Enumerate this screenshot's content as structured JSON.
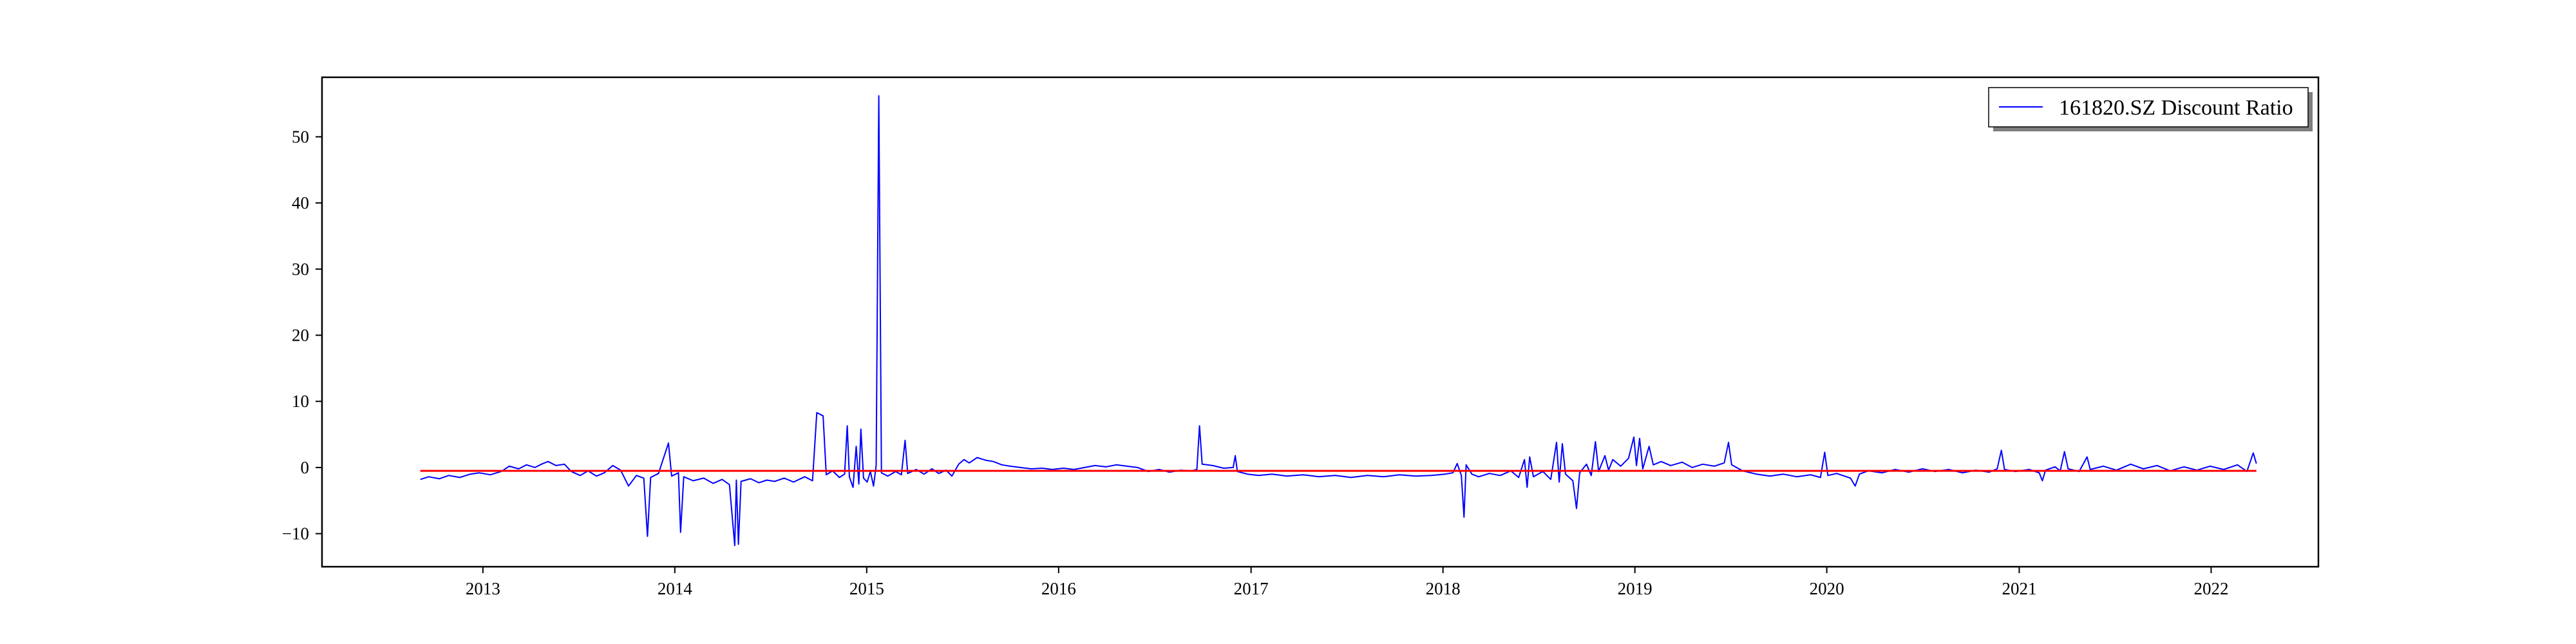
{
  "chart_data": {
    "type": "line",
    "title": "",
    "xlabel": "",
    "ylabel": "",
    "x_range": [
      "2012-03-01",
      "2022-07-24"
    ],
    "ylim": [
      -15,
      59
    ],
    "x_ticks": [
      "2013",
      "2014",
      "2015",
      "2016",
      "2017",
      "2018",
      "2019",
      "2020",
      "2021",
      "2022"
    ],
    "y_ticks": [
      -10,
      0,
      10,
      20,
      30,
      40,
      50
    ],
    "y_tick_labels": [
      "−10",
      "0",
      "10",
      "20",
      "30",
      "40",
      "50"
    ],
    "grid": false,
    "legend": {
      "position": "top-right",
      "entries": [
        "161820.SZ Discount Ratio"
      ]
    },
    "series": [
      {
        "name": "161820.SZ Discount Ratio",
        "color": "#0000ff",
        "points": [
          [
            "2012-09-04",
            -1.8
          ],
          [
            "2012-09-20",
            -1.4
          ],
          [
            "2012-10-10",
            -1.7
          ],
          [
            "2012-10-28",
            -1.2
          ],
          [
            "2012-11-18",
            -1.5
          ],
          [
            "2012-12-08",
            -1.0
          ],
          [
            "2012-12-25",
            -0.8
          ],
          [
            "2013-01-15",
            -1.1
          ],
          [
            "2013-02-05",
            -0.6
          ],
          [
            "2013-02-20",
            0.2
          ],
          [
            "2013-03-10",
            -0.2
          ],
          [
            "2013-03-25",
            0.4
          ],
          [
            "2013-04-10",
            0.0
          ],
          [
            "2013-04-25",
            0.6
          ],
          [
            "2013-05-05",
            0.9
          ],
          [
            "2013-05-20",
            0.3
          ],
          [
            "2013-06-05",
            0.5
          ],
          [
            "2013-06-18",
            -0.6
          ],
          [
            "2013-07-05",
            -1.2
          ],
          [
            "2013-07-20",
            -0.5
          ],
          [
            "2013-08-05",
            -1.3
          ],
          [
            "2013-08-20",
            -0.8
          ],
          [
            "2013-09-05",
            0.3
          ],
          [
            "2013-09-20",
            -0.4
          ],
          [
            "2013-10-05",
            -2.8
          ],
          [
            "2013-10-20",
            -1.2
          ],
          [
            "2013-11-03",
            -1.6
          ],
          [
            "2013-11-10",
            -10.4
          ],
          [
            "2013-11-16",
            -1.5
          ],
          [
            "2013-12-01",
            -0.9
          ],
          [
            "2013-12-20",
            3.7
          ],
          [
            "2013-12-26",
            -1.3
          ],
          [
            "2014-01-08",
            -0.8
          ],
          [
            "2014-01-12",
            -9.8
          ],
          [
            "2014-01-18",
            -1.4
          ],
          [
            "2014-02-05",
            -2.0
          ],
          [
            "2014-02-25",
            -1.6
          ],
          [
            "2014-03-15",
            -2.4
          ],
          [
            "2014-04-01",
            -1.8
          ],
          [
            "2014-04-15",
            -2.6
          ],
          [
            "2014-04-25",
            -11.8
          ],
          [
            "2014-04-28",
            -1.9
          ],
          [
            "2014-05-02",
            -11.6
          ],
          [
            "2014-05-07",
            -2.1
          ],
          [
            "2014-05-25",
            -1.7
          ],
          [
            "2014-06-10",
            -2.3
          ],
          [
            "2014-06-25",
            -1.9
          ],
          [
            "2014-07-10",
            -2.1
          ],
          [
            "2014-07-28",
            -1.6
          ],
          [
            "2014-08-15",
            -2.2
          ],
          [
            "2014-09-05",
            -1.4
          ],
          [
            "2014-09-20",
            -2.0
          ],
          [
            "2014-09-28",
            8.3
          ],
          [
            "2014-10-03",
            8.1
          ],
          [
            "2014-10-10",
            7.8
          ],
          [
            "2014-10-16",
            -1.1
          ],
          [
            "2014-10-28",
            -0.5
          ],
          [
            "2014-11-10",
            -1.5
          ],
          [
            "2014-11-20",
            -1.0
          ],
          [
            "2014-11-25",
            6.3
          ],
          [
            "2014-11-29",
            -1.4
          ],
          [
            "2014-12-06",
            -3.0
          ],
          [
            "2014-12-12",
            3.2
          ],
          [
            "2014-12-17",
            -2.5
          ],
          [
            "2014-12-21",
            5.8
          ],
          [
            "2014-12-26",
            -1.6
          ],
          [
            "2015-01-02",
            -2.2
          ],
          [
            "2015-01-08",
            -0.6
          ],
          [
            "2015-01-14",
            -2.8
          ],
          [
            "2015-01-19",
            0.3
          ],
          [
            "2015-01-24",
            56.2
          ],
          [
            "2015-01-29",
            -0.8
          ],
          [
            "2015-02-10",
            -1.3
          ],
          [
            "2015-02-25",
            -0.6
          ],
          [
            "2015-03-08",
            -1.1
          ],
          [
            "2015-03-15",
            4.1
          ],
          [
            "2015-03-20",
            -0.9
          ],
          [
            "2015-04-05",
            -0.3
          ],
          [
            "2015-04-20",
            -1.0
          ],
          [
            "2015-05-05",
            -0.2
          ],
          [
            "2015-05-18",
            -0.9
          ],
          [
            "2015-06-01",
            -0.4
          ],
          [
            "2015-06-12",
            -1.3
          ],
          [
            "2015-06-25",
            0.5
          ],
          [
            "2015-07-05",
            1.2
          ],
          [
            "2015-07-15",
            0.7
          ],
          [
            "2015-07-30",
            1.5
          ],
          [
            "2015-08-15",
            1.1
          ],
          [
            "2015-08-30",
            0.9
          ],
          [
            "2015-09-15",
            0.4
          ],
          [
            "2015-10-01",
            0.2
          ],
          [
            "2015-10-20",
            0.0
          ],
          [
            "2015-11-10",
            -0.2
          ],
          [
            "2015-12-01",
            -0.1
          ],
          [
            "2015-12-20",
            -0.3
          ],
          [
            "2016-01-10",
            -0.1
          ],
          [
            "2016-01-30",
            -0.3
          ],
          [
            "2016-02-20",
            0.0
          ],
          [
            "2016-03-10",
            0.3
          ],
          [
            "2016-03-31",
            0.1
          ],
          [
            "2016-04-20",
            0.4
          ],
          [
            "2016-05-10",
            0.2
          ],
          [
            "2016-05-30",
            0.0
          ],
          [
            "2016-06-20",
            -0.6
          ],
          [
            "2016-07-10",
            -0.3
          ],
          [
            "2016-07-30",
            -0.7
          ],
          [
            "2016-08-20",
            -0.4
          ],
          [
            "2016-09-10",
            -0.5
          ],
          [
            "2016-09-20",
            -0.3
          ],
          [
            "2016-09-25",
            6.3
          ],
          [
            "2016-09-30",
            0.5
          ],
          [
            "2016-10-20",
            0.3
          ],
          [
            "2016-11-10",
            -0.1
          ],
          [
            "2016-11-28",
            0.0
          ],
          [
            "2016-12-02",
            1.8
          ],
          [
            "2016-12-06",
            -0.6
          ],
          [
            "2016-12-25",
            -1.0
          ],
          [
            "2017-01-15",
            -1.2
          ],
          [
            "2017-02-10",
            -1.0
          ],
          [
            "2017-03-10",
            -1.3
          ],
          [
            "2017-04-10",
            -1.1
          ],
          [
            "2017-05-10",
            -1.4
          ],
          [
            "2017-06-10",
            -1.2
          ],
          [
            "2017-07-10",
            -1.5
          ],
          [
            "2017-08-10",
            -1.2
          ],
          [
            "2017-09-10",
            -1.4
          ],
          [
            "2017-10-10",
            -1.1
          ],
          [
            "2017-11-10",
            -1.3
          ],
          [
            "2017-12-10",
            -1.2
          ],
          [
            "2018-01-05",
            -1.0
          ],
          [
            "2018-01-20",
            -0.8
          ],
          [
            "2018-01-28",
            0.6
          ],
          [
            "2018-02-05",
            -1.2
          ],
          [
            "2018-02-10",
            -7.5
          ],
          [
            "2018-02-14",
            0.4
          ],
          [
            "2018-02-25",
            -1.0
          ],
          [
            "2018-03-10",
            -1.4
          ],
          [
            "2018-03-30",
            -0.9
          ],
          [
            "2018-04-20",
            -1.2
          ],
          [
            "2018-05-10",
            -0.5
          ],
          [
            "2018-05-25",
            -1.5
          ],
          [
            "2018-06-05",
            1.2
          ],
          [
            "2018-06-10",
            -3.0
          ],
          [
            "2018-06-15",
            1.6
          ],
          [
            "2018-06-22",
            -1.4
          ],
          [
            "2018-07-10",
            -0.6
          ],
          [
            "2018-07-25",
            -1.8
          ],
          [
            "2018-08-05",
            3.8
          ],
          [
            "2018-08-10",
            -2.2
          ],
          [
            "2018-08-16",
            3.6
          ],
          [
            "2018-08-22",
            -1.0
          ],
          [
            "2018-09-05",
            -2.0
          ],
          [
            "2018-09-12",
            -6.2
          ],
          [
            "2018-09-18",
            -0.8
          ],
          [
            "2018-10-01",
            0.5
          ],
          [
            "2018-10-10",
            -1.2
          ],
          [
            "2018-10-18",
            3.9
          ],
          [
            "2018-10-24",
            -0.6
          ],
          [
            "2018-11-05",
            1.8
          ],
          [
            "2018-11-12",
            -0.4
          ],
          [
            "2018-11-20",
            1.2
          ],
          [
            "2018-12-05",
            0.2
          ],
          [
            "2018-12-20",
            1.4
          ],
          [
            "2018-12-30",
            4.6
          ],
          [
            "2019-01-04",
            0.3
          ],
          [
            "2019-01-10",
            4.4
          ],
          [
            "2019-01-16",
            -0.2
          ],
          [
            "2019-01-28",
            3.2
          ],
          [
            "2019-02-05",
            0.4
          ],
          [
            "2019-02-20",
            0.9
          ],
          [
            "2019-03-10",
            0.3
          ],
          [
            "2019-04-01",
            0.8
          ],
          [
            "2019-04-20",
            0.0
          ],
          [
            "2019-05-10",
            0.5
          ],
          [
            "2019-06-01",
            0.2
          ],
          [
            "2019-06-20",
            0.7
          ],
          [
            "2019-06-28",
            3.8
          ],
          [
            "2019-07-04",
            0.4
          ],
          [
            "2019-07-25",
            -0.5
          ],
          [
            "2019-08-20",
            -1.0
          ],
          [
            "2019-09-15",
            -1.3
          ],
          [
            "2019-10-10",
            -1.0
          ],
          [
            "2019-11-05",
            -1.4
          ],
          [
            "2019-12-01",
            -1.1
          ],
          [
            "2019-12-20",
            -1.5
          ],
          [
            "2019-12-28",
            2.3
          ],
          [
            "2020-01-03",
            -1.2
          ],
          [
            "2020-01-20",
            -0.9
          ],
          [
            "2020-02-15",
            -1.6
          ],
          [
            "2020-02-24",
            -2.8
          ],
          [
            "2020-03-03",
            -1.0
          ],
          [
            "2020-03-20",
            -0.5
          ],
          [
            "2020-04-15",
            -0.8
          ],
          [
            "2020-05-10",
            -0.3
          ],
          [
            "2020-06-05",
            -0.7
          ],
          [
            "2020-07-01",
            -0.2
          ],
          [
            "2020-07-25",
            -0.6
          ],
          [
            "2020-08-20",
            -0.3
          ],
          [
            "2020-09-15",
            -0.8
          ],
          [
            "2020-10-10",
            -0.4
          ],
          [
            "2020-11-05",
            -0.7
          ],
          [
            "2020-11-20",
            -0.2
          ],
          [
            "2020-11-28",
            2.6
          ],
          [
            "2020-12-04",
            -0.3
          ],
          [
            "2020-12-25",
            -0.6
          ],
          [
            "2021-01-20",
            -0.3
          ],
          [
            "2021-02-08",
            -0.8
          ],
          [
            "2021-02-14",
            -2.0
          ],
          [
            "2021-02-20",
            -0.4
          ],
          [
            "2021-03-10",
            0.1
          ],
          [
            "2021-03-20",
            -0.5
          ],
          [
            "2021-03-28",
            2.4
          ],
          [
            "2021-04-04",
            -0.2
          ],
          [
            "2021-04-25",
            -0.6
          ],
          [
            "2021-05-10",
            1.6
          ],
          [
            "2021-05-16",
            -0.3
          ],
          [
            "2021-06-10",
            0.2
          ],
          [
            "2021-07-05",
            -0.4
          ],
          [
            "2021-08-01",
            0.5
          ],
          [
            "2021-08-25",
            -0.2
          ],
          [
            "2021-09-20",
            0.3
          ],
          [
            "2021-10-15",
            -0.5
          ],
          [
            "2021-11-10",
            0.1
          ],
          [
            "2021-12-05",
            -0.4
          ],
          [
            "2021-12-30",
            0.2
          ],
          [
            "2022-01-25",
            -0.3
          ],
          [
            "2022-02-20",
            0.4
          ],
          [
            "2022-03-10",
            -0.6
          ],
          [
            "2022-03-22",
            2.2
          ],
          [
            "2022-03-28",
            0.6
          ]
        ]
      },
      {
        "name": "",
        "color": "#ff0000",
        "points": [
          [
            "2012-09-04",
            -0.5
          ],
          [
            "2022-03-28",
            -0.5
          ]
        ]
      }
    ]
  }
}
